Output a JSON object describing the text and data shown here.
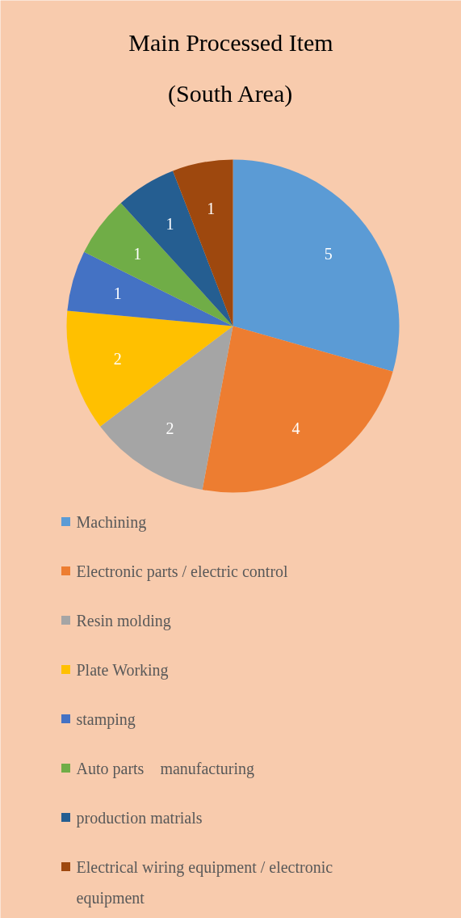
{
  "chart_data": {
    "type": "pie",
    "title": "Main Processed Item\n(South Area)",
    "categories": [
      "Machining",
      "Electronic parts / electric control",
      "Resin molding",
      "Plate Working",
      "stamping",
      "Auto parts　manufacturing",
      "production matrials",
      "Electrical wiring equipment / electronic equipment"
    ],
    "values": [
      5,
      4,
      2,
      2,
      1,
      1,
      1,
      1
    ],
    "colors": [
      "#5b9bd5",
      "#ed7d31",
      "#a5a5a5",
      "#ffc000",
      "#4472c4",
      "#70ad47",
      "#255e91",
      "#9e480e"
    ],
    "data_labels": true,
    "legend": "bottom"
  }
}
